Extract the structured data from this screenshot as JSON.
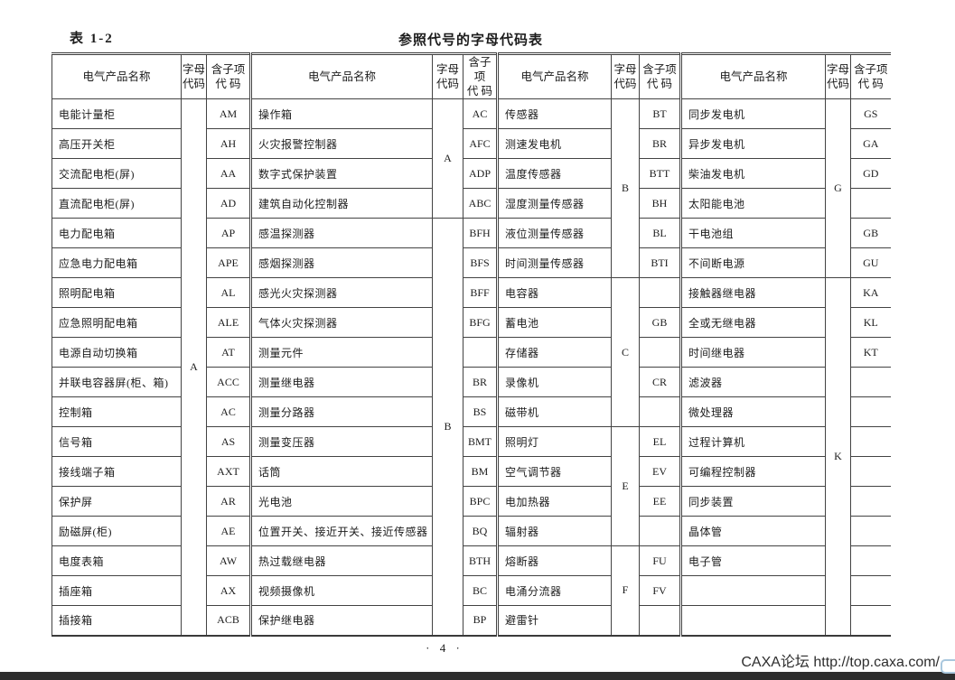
{
  "page": {
    "table_label": "表 1-2",
    "title": "参照代号的字母代码表",
    "page_number": "·  4  ·",
    "watermark": "CAXA论坛 http://top.caxa.com/"
  },
  "table": {
    "header": {
      "name": "电气产品名称",
      "letter": "字母\n代码",
      "sub": "含子项\n代  码"
    },
    "col_widths": [
      {
        "name": 143,
        "letter": 28,
        "sub": 49
      },
      {
        "name": 201,
        "letter": 34,
        "sub": 38
      },
      {
        "name": 126,
        "letter": 31,
        "sub": 46
      },
      {
        "name": 160,
        "letter": 28,
        "sub": 44
      }
    ],
    "groups": [
      {
        "letter_spans": [
          {
            "letter": "A",
            "rows": 18
          }
        ],
        "rows": [
          {
            "name": "电能计量柜",
            "sub": "AM"
          },
          {
            "name": "高压开关柜",
            "sub": "AH"
          },
          {
            "name": "交流配电柜(屏)",
            "sub": "AA"
          },
          {
            "name": "直流配电柜(屏)",
            "sub": "AD"
          },
          {
            "name": "电力配电箱",
            "sub": "AP"
          },
          {
            "name": "应急电力配电箱",
            "sub": "APE"
          },
          {
            "name": "照明配电箱",
            "sub": "AL"
          },
          {
            "name": "应急照明配电箱",
            "sub": "ALE"
          },
          {
            "name": "电源自动切换箱",
            "sub": "AT"
          },
          {
            "name": "并联电容器屏(柜、箱)",
            "sub": "ACC"
          },
          {
            "name": "控制箱",
            "sub": "AC"
          },
          {
            "name": "信号箱",
            "sub": "AS"
          },
          {
            "name": "接线端子箱",
            "sub": "AXT"
          },
          {
            "name": "保护屏",
            "sub": "AR"
          },
          {
            "name": "励磁屏(柜)",
            "sub": "AE"
          },
          {
            "name": "电度表箱",
            "sub": "AW"
          },
          {
            "name": "插座箱",
            "sub": "AX"
          },
          {
            "name": "插接箱",
            "sub": "ACB"
          }
        ]
      },
      {
        "letter_spans": [
          {
            "letter": "A",
            "rows": 4
          },
          {
            "letter": "B",
            "rows": 14
          }
        ],
        "rows": [
          {
            "name": "操作箱",
            "sub": "AC"
          },
          {
            "name": "火灾报警控制器",
            "sub": "AFC"
          },
          {
            "name": "数字式保护装置",
            "sub": "ADP"
          },
          {
            "name": "建筑自动化控制器",
            "sub": "ABC"
          },
          {
            "name": "感温探测器",
            "sub": "BFH"
          },
          {
            "name": "感烟探测器",
            "sub": "BFS"
          },
          {
            "name": "感光火灾探测器",
            "sub": "BFF"
          },
          {
            "name": "气体火灾探测器",
            "sub": "BFG"
          },
          {
            "name": "测量元件",
            "sub": ""
          },
          {
            "name": "测量继电器",
            "sub": "BR"
          },
          {
            "name": "测量分路器",
            "sub": "BS"
          },
          {
            "name": "测量变压器",
            "sub": "BMT"
          },
          {
            "name": "话筒",
            "sub": "BM"
          },
          {
            "name": "光电池",
            "sub": "BPC"
          },
          {
            "name": "位置开关、接近开关、接近传感器",
            "sub": "BQ"
          },
          {
            "name": "热过载继电器",
            "sub": "BTH"
          },
          {
            "name": "视频摄像机",
            "sub": "BC"
          },
          {
            "name": "保护继电器",
            "sub": "BP"
          }
        ]
      },
      {
        "letter_spans": [
          {
            "letter": "B",
            "rows": 6
          },
          {
            "letter": "C",
            "rows": 5
          },
          {
            "letter": "E",
            "rows": 4
          },
          {
            "letter": "F",
            "rows": 3
          }
        ],
        "rows": [
          {
            "name": "传感器",
            "sub": "BT"
          },
          {
            "name": "测速发电机",
            "sub": "BR"
          },
          {
            "name": "温度传感器",
            "sub": "BTT"
          },
          {
            "name": "湿度测量传感器",
            "sub": "BH"
          },
          {
            "name": "液位测量传感器",
            "sub": "BL"
          },
          {
            "name": "时间测量传感器",
            "sub": "BTI"
          },
          {
            "name": "电容器",
            "sub": ""
          },
          {
            "name": "蓄电池",
            "sub": "GB"
          },
          {
            "name": "存储器",
            "sub": ""
          },
          {
            "name": "录像机",
            "sub": "CR"
          },
          {
            "name": "磁带机",
            "sub": ""
          },
          {
            "name": "照明灯",
            "sub": "EL"
          },
          {
            "name": "空气调节器",
            "sub": "EV"
          },
          {
            "name": "电加热器",
            "sub": "EE"
          },
          {
            "name": "辐射器",
            "sub": ""
          },
          {
            "name": "熔断器",
            "sub": "FU"
          },
          {
            "name": "电涌分流器",
            "sub": "FV"
          },
          {
            "name": "避雷针",
            "sub": ""
          }
        ]
      },
      {
        "letter_spans": [
          {
            "letter": "G",
            "rows": 6
          },
          {
            "letter": "K",
            "rows": 12
          }
        ],
        "rows": [
          {
            "name": "同步发电机",
            "sub": "GS"
          },
          {
            "name": "异步发电机",
            "sub": "GA"
          },
          {
            "name": "柴油发电机",
            "sub": "GD"
          },
          {
            "name": "太阳能电池",
            "sub": ""
          },
          {
            "name": "干电池组",
            "sub": "GB"
          },
          {
            "name": "不间断电源",
            "sub": "GU"
          },
          {
            "name": "接触器继电器",
            "sub": "KA"
          },
          {
            "name": "全或无继电器",
            "sub": "KL"
          },
          {
            "name": "时间继电器",
            "sub": "KT"
          },
          {
            "name": "滤波器",
            "sub": ""
          },
          {
            "name": "微处理器",
            "sub": ""
          },
          {
            "name": "过程计算机",
            "sub": ""
          },
          {
            "name": "可编程控制器",
            "sub": ""
          },
          {
            "name": "同步装置",
            "sub": ""
          },
          {
            "name": "晶体管",
            "sub": ""
          },
          {
            "name": "电子管",
            "sub": ""
          },
          {
            "name": "",
            "sub": ""
          },
          {
            "name": "",
            "sub": ""
          }
        ]
      }
    ]
  },
  "colors": {
    "line": "#434343",
    "bottom_bar": "#2d2d2d",
    "corner_button_border": "#a9c7dd"
  }
}
